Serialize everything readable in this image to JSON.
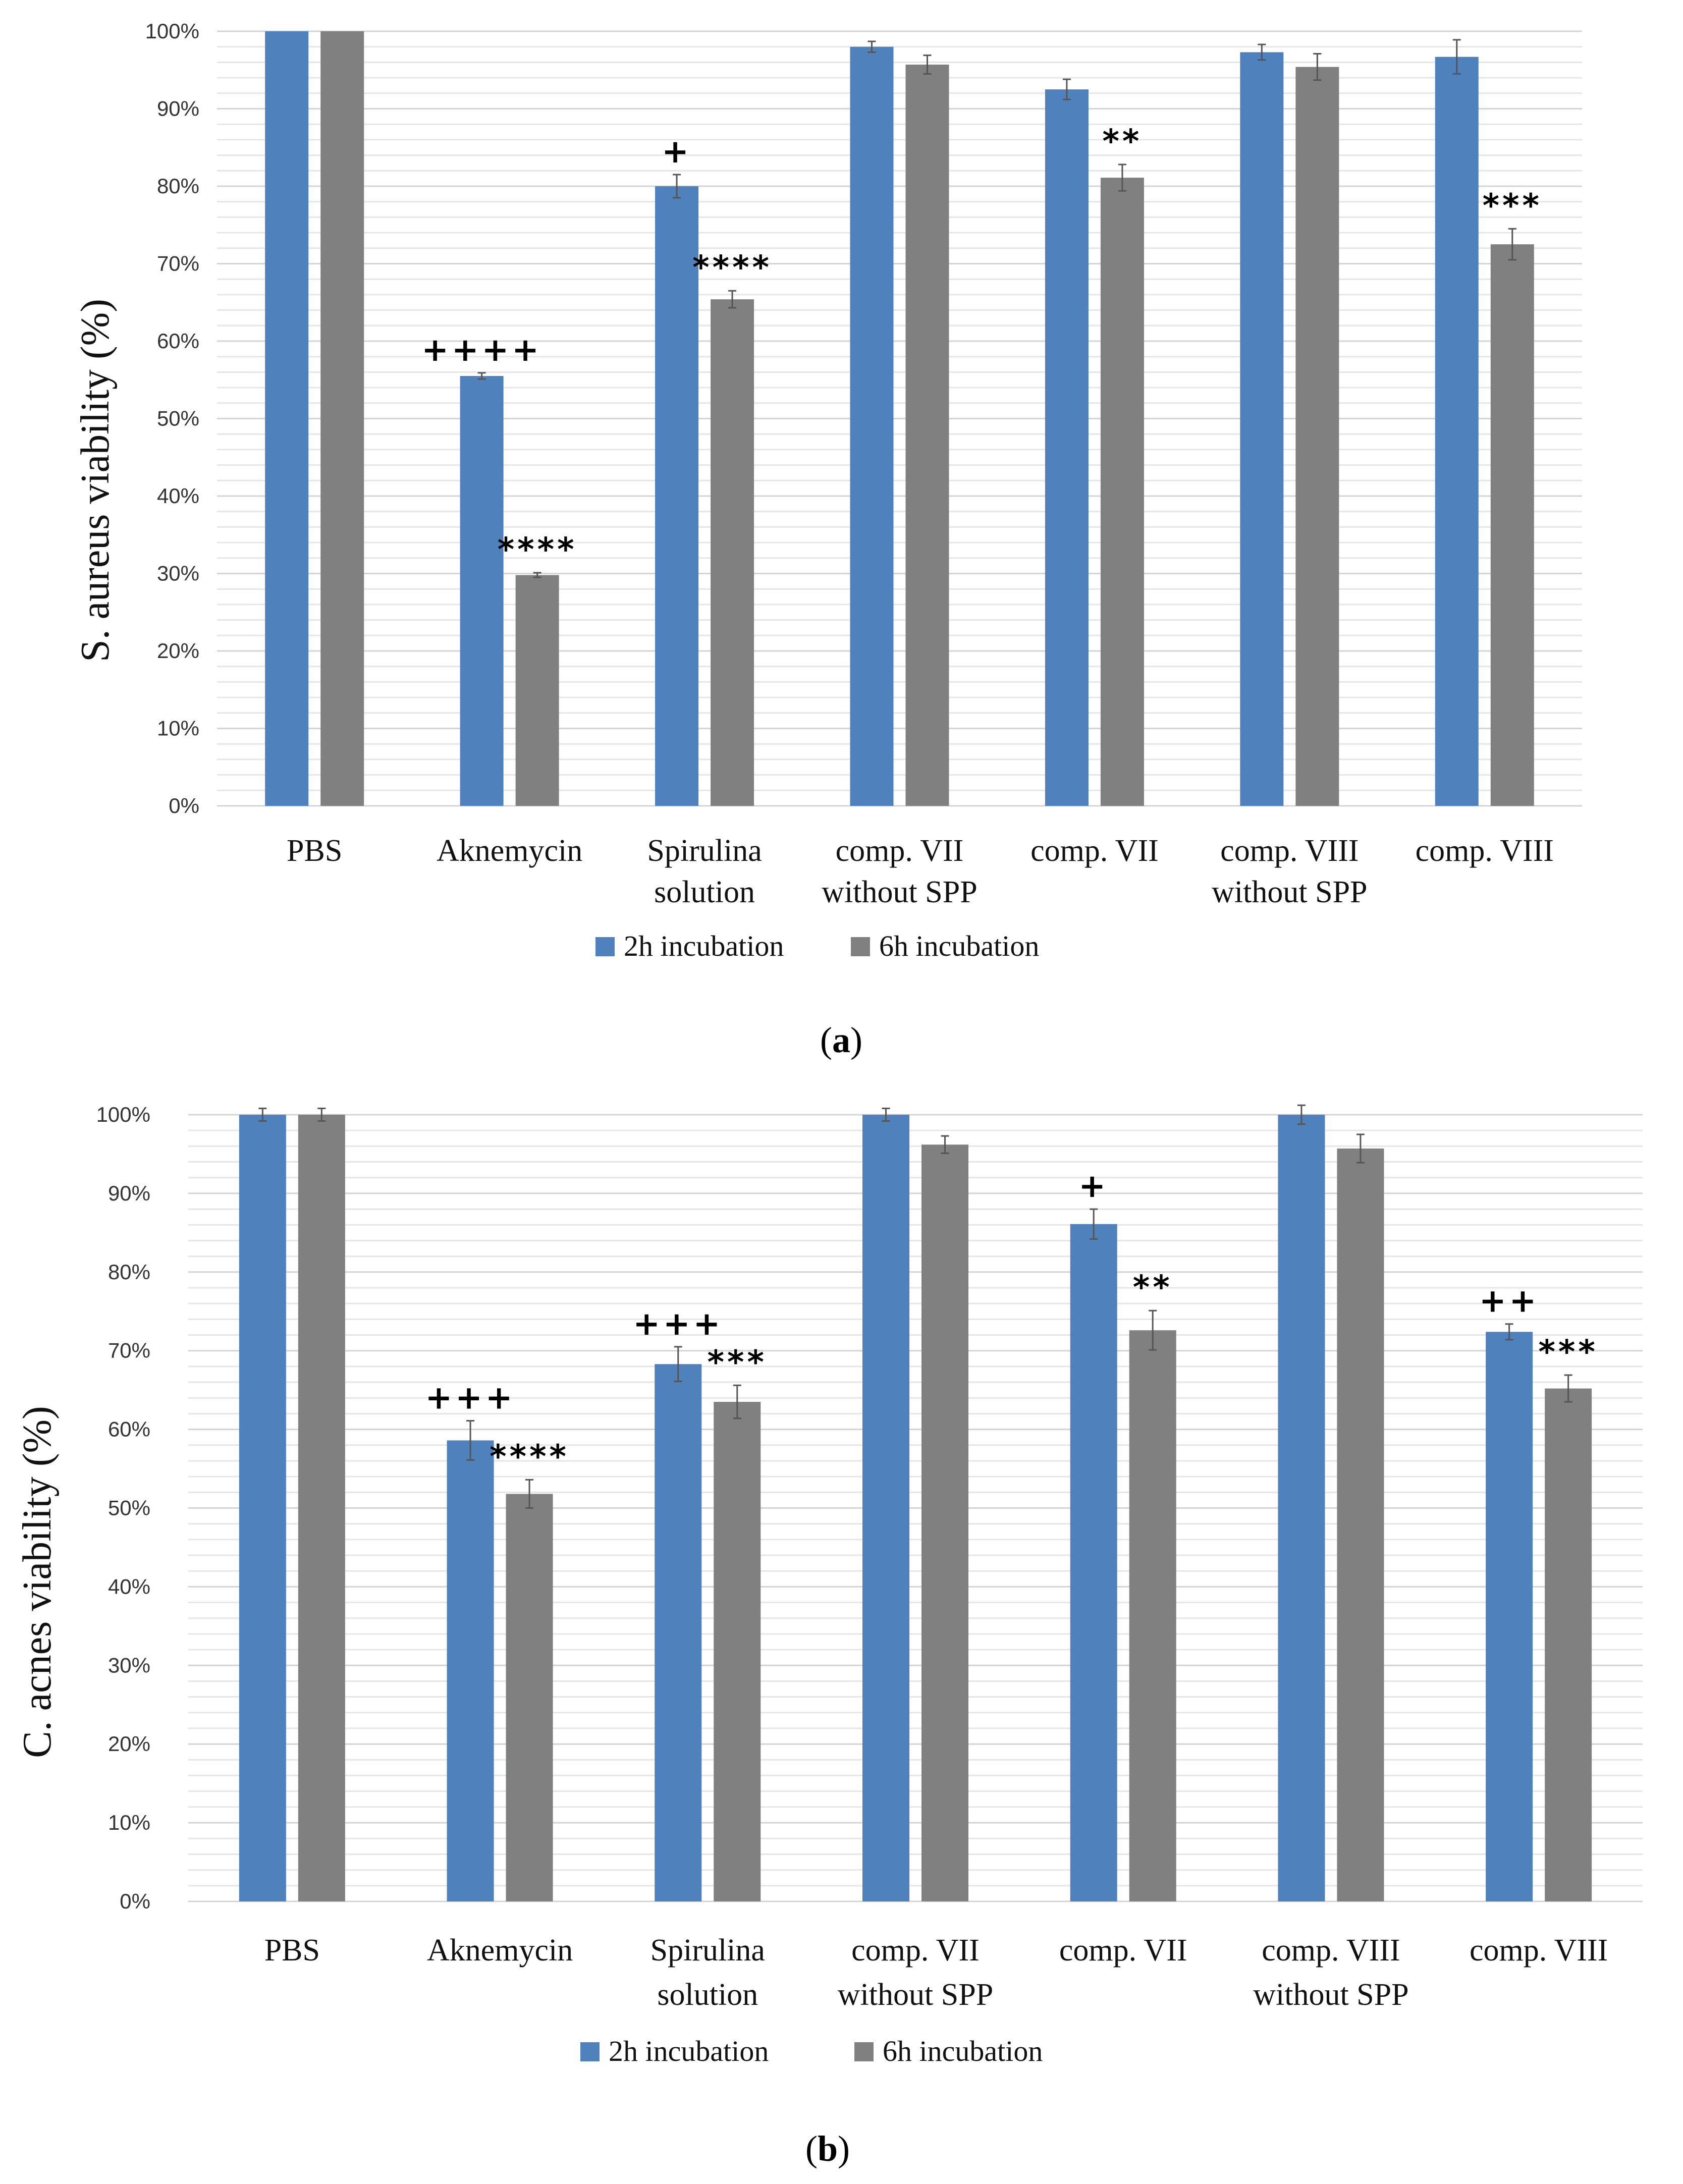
{
  "colors": {
    "series_2h": "#4f81bd",
    "series_6h": "#808080"
  },
  "chart_data": [
    {
      "panel": "(a)",
      "panel_label": {
        "open": "(",
        "letter": "a",
        "close": ")"
      },
      "type": "bar",
      "ylabel": "S. aureus viability (%)",
      "ylim": [
        0,
        100
      ],
      "yticks": [
        "0%",
        "10%",
        "20%",
        "30%",
        "40%",
        "50%",
        "60%",
        "70%",
        "80%",
        "90%",
        "100%"
      ],
      "categories": [
        [
          "PBS"
        ],
        [
          "Aknemycin"
        ],
        [
          "Spirulina",
          "solution"
        ],
        [
          "comp. VII",
          "without SPP"
        ],
        [
          "comp. VII"
        ],
        [
          "comp. VIII",
          "without SPP"
        ],
        [
          "comp. VIII"
        ]
      ],
      "series": [
        {
          "name": "2h incubation",
          "values": [
            100,
            55.5,
            80,
            98,
            92.5,
            97.3,
            96.7
          ],
          "errors": [
            0,
            0.4,
            1.5,
            0.7,
            1.3,
            1,
            2.2
          ],
          "annotations": [
            "",
            "++++",
            "+",
            "",
            "",
            "",
            ""
          ]
        },
        {
          "name": "6h incubation",
          "values": [
            100,
            29.8,
            65.4,
            95.7,
            81.1,
            95.4,
            72.5
          ],
          "errors": [
            0,
            0.3,
            1.1,
            1.2,
            1.7,
            1.7,
            2
          ],
          "annotations": [
            "",
            "****",
            "****",
            "",
            "**",
            "",
            "***"
          ]
        }
      ]
    },
    {
      "panel": "(b)",
      "panel_label": {
        "open": "(",
        "letter": "b",
        "close": ")"
      },
      "type": "bar",
      "ylabel": "C. acnes viability (%)",
      "ylim": [
        0,
        100
      ],
      "yticks": [
        "0%",
        "10%",
        "20%",
        "30%",
        "40%",
        "50%",
        "60%",
        "70%",
        "80%",
        "90%",
        "100%"
      ],
      "categories": [
        [
          "PBS"
        ],
        [
          "Aknemycin"
        ],
        [
          "Spirulina",
          "solution"
        ],
        [
          "comp. VII",
          "without SPP"
        ],
        [
          "comp. VII"
        ],
        [
          "comp. VIII",
          "without SPP"
        ],
        [
          "comp. VIII"
        ]
      ],
      "series": [
        {
          "name": "2h incubation",
          "values": [
            100,
            58.6,
            68.3,
            100,
            86.1,
            100,
            72.4
          ],
          "errors": [
            0.8,
            2.5,
            2.2,
            0.8,
            1.9,
            1.2,
            1
          ],
          "annotations": [
            "",
            "+++",
            "+++",
            "",
            "+",
            "",
            "++"
          ]
        },
        {
          "name": "6h incubation",
          "values": [
            100,
            51.8,
            63.5,
            96.2,
            72.6,
            95.7,
            65.2
          ],
          "errors": [
            0.8,
            1.8,
            2.1,
            1.1,
            2.5,
            1.8,
            1.7
          ],
          "annotations": [
            "",
            "****",
            "***",
            "",
            "**",
            "",
            "***"
          ]
        }
      ]
    }
  ]
}
